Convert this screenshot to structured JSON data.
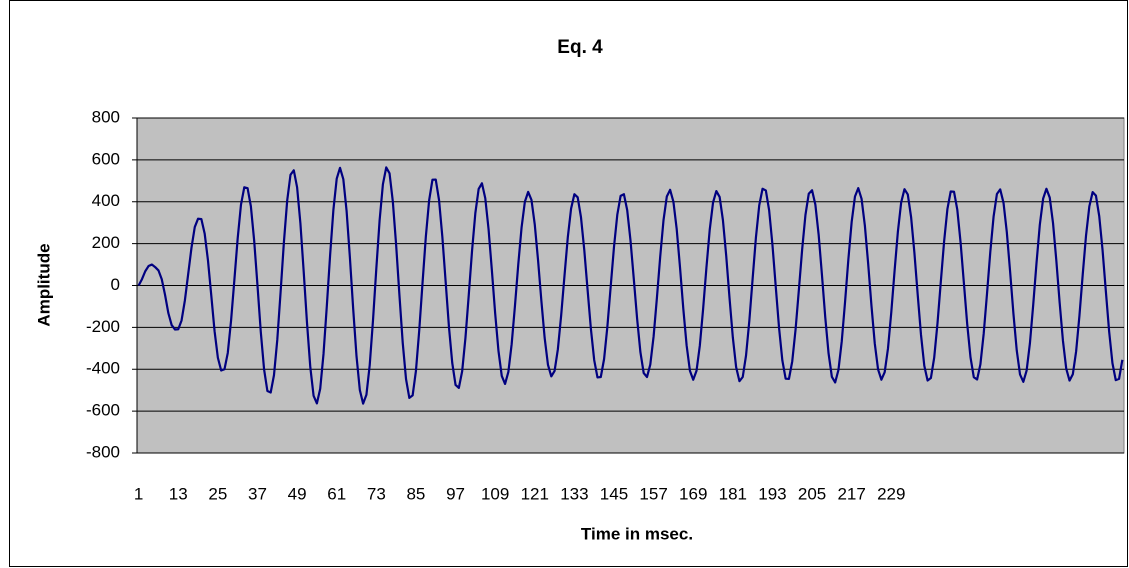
{
  "chart_data": {
    "type": "line",
    "title": "Eq. 4",
    "xlabel": "Time in msec.",
    "ylabel": "Amplitude",
    "color": "#000080",
    "grid": true,
    "xlim": [
      0.5,
      299.5
    ],
    "xticks": [
      1,
      13,
      25,
      37,
      49,
      61,
      73,
      85,
      97,
      109,
      121,
      133,
      145,
      157,
      169,
      181,
      193,
      205,
      217,
      229
    ],
    "ylim": [
      -800,
      800
    ],
    "yticks": [
      -800,
      -600,
      -400,
      -200,
      0,
      200,
      400,
      600,
      800
    ],
    "x": [
      1,
      2,
      3,
      4,
      5,
      6,
      7,
      8,
      9,
      10,
      11,
      12,
      13,
      14,
      15,
      16,
      17,
      18,
      19,
      20,
      21,
      22,
      23,
      24,
      25,
      26,
      27,
      28,
      29,
      30,
      31,
      32,
      33,
      34,
      35,
      36,
      37,
      38,
      39,
      40,
      41,
      42,
      43,
      44,
      45,
      46,
      47,
      48,
      49,
      50,
      51,
      52,
      53,
      54,
      55,
      56,
      57,
      58,
      59,
      60,
      61,
      62,
      63,
      64,
      65,
      66,
      67,
      68,
      69,
      70,
      71,
      72,
      73,
      74,
      75,
      76,
      77,
      78,
      79,
      80,
      81,
      82,
      83,
      84,
      85,
      86,
      87,
      88,
      89,
      90,
      91,
      92,
      93,
      94,
      95,
      96,
      97,
      98,
      99,
      100,
      101,
      102,
      103,
      104,
      105,
      106,
      107,
      108,
      109,
      110,
      111,
      112,
      113,
      114,
      115,
      116,
      117,
      118,
      119,
      120,
      121,
      122,
      123,
      124,
      125,
      126,
      127,
      128,
      129,
      130,
      131,
      132,
      133,
      134,
      135,
      136,
      137,
      138,
      139,
      140,
      141,
      142,
      143,
      144,
      145,
      146,
      147,
      148,
      149,
      150,
      151,
      152,
      153,
      154,
      155,
      156,
      157,
      158,
      159,
      160,
      161,
      162,
      163,
      164,
      165,
      166,
      167,
      168,
      169,
      170,
      171,
      172,
      173,
      174,
      175,
      176,
      177,
      178,
      179,
      180,
      181,
      182,
      183,
      184,
      185,
      186,
      187,
      188,
      189,
      190,
      191,
      192,
      193,
      194,
      195,
      196,
      197,
      198,
      199,
      200,
      201,
      202,
      203,
      204,
      205,
      206,
      207,
      208,
      209,
      210,
      211,
      212,
      213,
      214,
      215,
      216,
      217,
      218,
      219,
      220,
      221,
      222,
      223,
      224,
      225,
      226,
      227,
      228,
      229,
      230,
      231,
      232,
      233,
      234,
      235,
      236,
      237,
      238,
      239,
      240,
      241,
      242,
      243,
      244,
      245,
      246,
      247,
      248,
      249,
      250,
      251,
      252,
      253,
      254,
      255,
      256,
      257,
      258,
      259,
      260,
      261,
      262,
      263,
      264,
      265,
      266,
      267,
      268,
      269,
      270,
      271,
      272,
      273,
      274,
      275,
      276,
      277,
      278,
      279,
      280,
      281,
      282,
      283,
      284,
      285,
      286,
      287,
      288,
      289,
      290,
      291,
      292,
      293,
      294,
      295,
      296,
      297,
      298,
      299
    ],
    "values": [
      0,
      30,
      68,
      93,
      100,
      88,
      72,
      30,
      -45,
      -132,
      -189,
      -210,
      -209,
      -167,
      -72,
      54,
      180,
      279,
      319,
      317,
      248,
      120,
      -47,
      -218,
      -345,
      -406,
      -400,
      -322,
      -167,
      27,
      225,
      386,
      469,
      465,
      378,
      213,
      0,
      -222,
      -401,
      -504,
      -511,
      -428,
      -259,
      -32,
      206,
      406,
      529,
      550,
      469,
      297,
      66,
      -178,
      -390,
      -527,
      -563,
      -493,
      -327,
      -99,
      145,
      362,
      510,
      562,
      508,
      355,
      133,
      -114,
      -338,
      -499,
      -564,
      -522,
      -380,
      -165,
      81,
      312,
      484,
      564,
      536,
      401,
      194,
      -46,
      -274,
      -447,
      -537,
      -525,
      -408,
      -214,
      13,
      233,
      407,
      505,
      506,
      408,
      233,
      18,
      -197,
      -370,
      -475,
      -489,
      -410,
      -250,
      -46,
      166,
      346,
      461,
      488,
      417,
      269,
      73,
      -133,
      -312,
      -432,
      -470,
      -413,
      -280,
      -97,
      101,
      277,
      400,
      447,
      409,
      291,
      120,
      -73,
      -251,
      -379,
      -434,
      -408,
      -304,
      -142,
      46,
      229,
      367,
      436,
      421,
      326,
      169,
      -21,
      -207,
      -356,
      -439,
      -437,
      -351,
      -196,
      -5,
      184,
      338,
      428,
      436,
      360,
      215,
      31,
      -158,
      -318,
      -418,
      -437,
      -377,
      -243,
      -59,
      138,
      312,
      425,
      457,
      400,
      269,
      86,
      -112,
      -286,
      -407,
      -450,
      -407,
      -287,
      -112,
      85,
      266,
      396,
      451,
      423,
      312,
      141,
      -60,
      -248,
      -390,
      -457,
      -437,
      -334,
      -168,
      33,
      230,
      383,
      462,
      454,
      359,
      195,
      -5,
      -202,
      -358,
      -445,
      -446,
      -362,
      -211,
      -22,
      172,
      337,
      438,
      455,
      386,
      242,
      50,
      -152,
      -324,
      -436,
      -463,
      -403,
      -266,
      -78,
      125,
      304,
      425,
      465,
      414,
      286,
      104,
      -97,
      -277,
      -401,
      -450,
      -414,
      -301,
      -128,
      70,
      257,
      397,
      460,
      435,
      327,
      157,
      -43,
      -235,
      -383,
      -454,
      -442,
      -345,
      -181,
      16,
      210,
      365,
      449,
      448,
      362,
      205,
      11,
      -184,
      -343,
      -438,
      -449,
      -376,
      -229,
      -39,
      161,
      330,
      437,
      459,
      395,
      255,
      66,
      -134,
      -309,
      -425,
      -460,
      -406,
      -276,
      -92,
      108,
      290,
      415,
      462,
      420,
      298,
      119,
      -81,
      -263,
      -397,
      -454,
      -424,
      -314,
      -144,
      53,
      239,
      378,
      446,
      429,
      331,
      170,
      -27,
      -220,
      -371,
      -452,
      -446,
      -355
    ]
  }
}
